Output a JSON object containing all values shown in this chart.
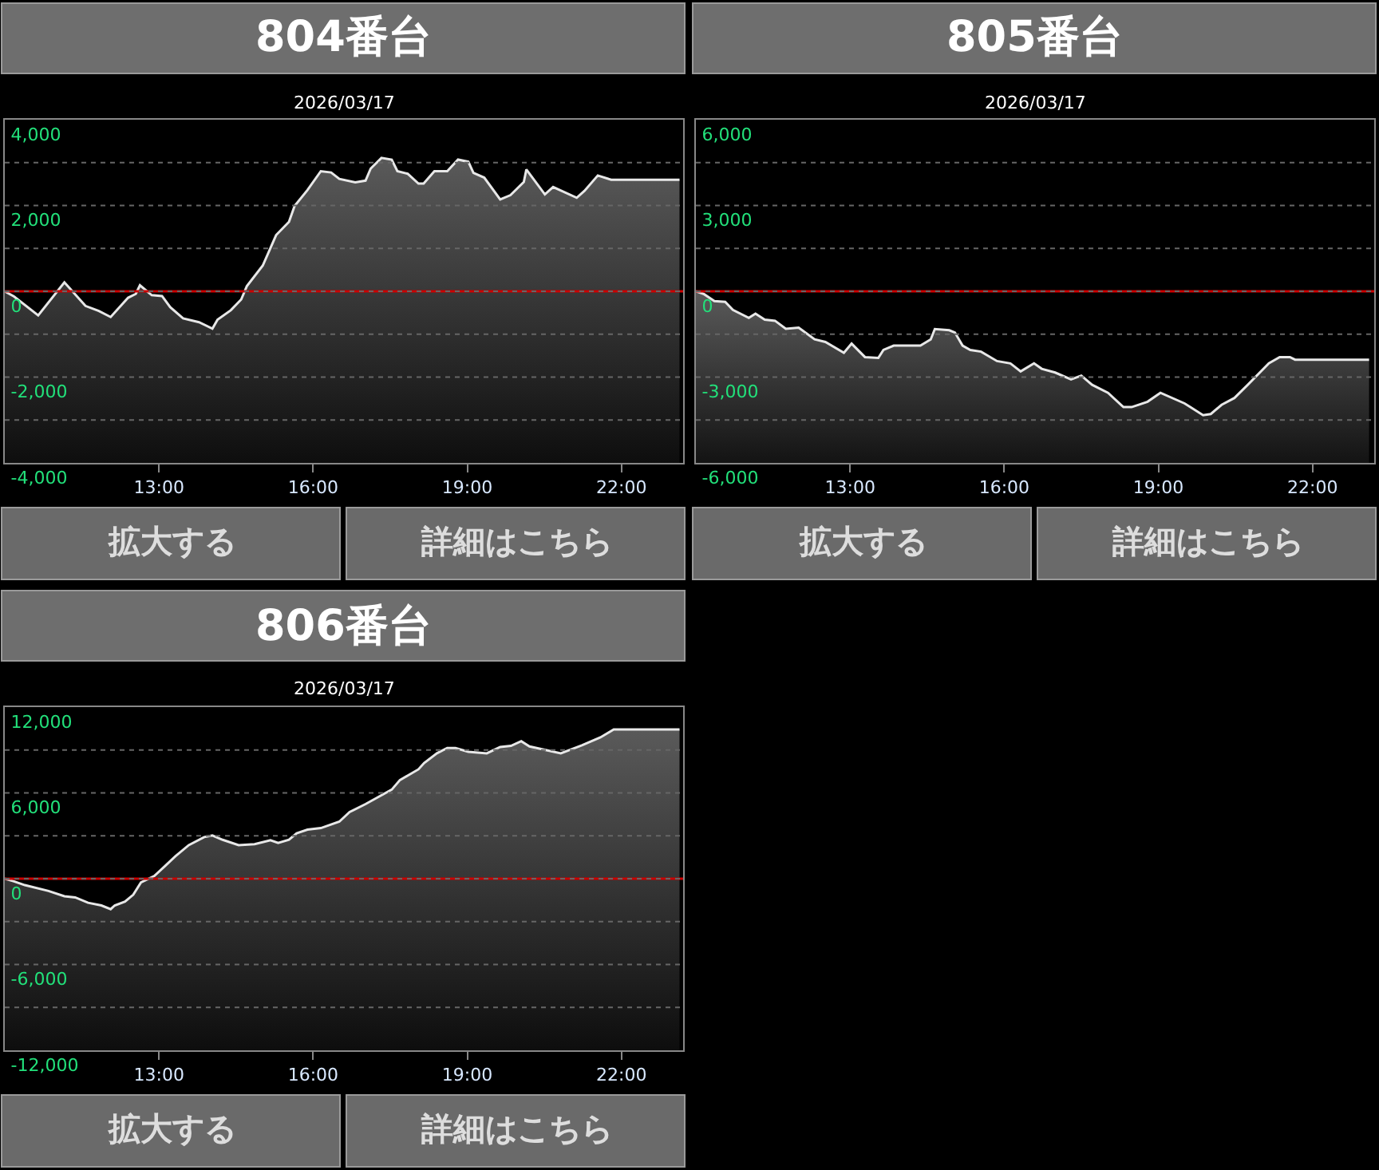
{
  "chart_data": [
    {
      "type": "area",
      "title": "804番台",
      "subtitle": "2026/03/17",
      "annotations": [
        "拡大する",
        "詳細はこちら"
      ],
      "grid": "y",
      "xlim": [
        10,
        23.2
      ],
      "xticks": [
        {
          "value": 13,
          "label": "13:00"
        },
        {
          "value": 16,
          "label": "16:00"
        },
        {
          "value": 19,
          "label": "19:00"
        },
        {
          "value": 22,
          "label": "22:00"
        }
      ],
      "ylim": [
        -4000,
        4000
      ],
      "yticks": [
        {
          "value": -4000,
          "label": "-4,000"
        },
        {
          "value": -3000,
          "label": null
        },
        {
          "value": -2000,
          "label": "-2,000"
        },
        {
          "value": -1000,
          "label": null
        },
        0,
        {
          "value": 1000,
          "label": null
        },
        {
          "value": 2000,
          "label": "2,000"
        },
        {
          "value": 3000,
          "label": null
        },
        {
          "value": 4000,
          "label": "4,000"
        }
      ],
      "ref_lines": [
        {
          "axis": "y",
          "value": 0,
          "color": "#cc0000"
        }
      ],
      "series": [
        {
          "color": "#5a5a5a",
          "x": [
            10.0,
            10.18,
            10.65,
            11.16,
            11.57,
            11.83,
            12.06,
            12.4,
            12.55,
            12.63,
            12.86,
            13.06,
            13.22,
            13.47,
            13.78,
            14.04,
            14.14,
            14.4,
            14.6,
            14.71,
            15.02,
            15.28,
            15.53,
            15.64,
            15.89,
            16.15,
            16.35,
            16.51,
            16.82,
            17.02,
            17.12,
            17.33,
            17.53,
            17.64,
            17.84,
            18.05,
            18.15,
            18.36,
            18.61,
            18.82,
            19.02,
            19.12,
            19.33,
            19.64,
            19.84,
            20.1,
            20.15,
            20.51,
            20.67,
            21.13,
            21.28,
            21.54,
            21.8,
            23.13
          ],
          "values": [
            0,
            -120,
            -560,
            210,
            -340,
            -460,
            -600,
            -150,
            -60,
            140,
            -90,
            -110,
            -370,
            -630,
            -720,
            -870,
            -660,
            -440,
            -190,
            120,
            600,
            1310,
            1620,
            1990,
            2360,
            2800,
            2770,
            2620,
            2540,
            2580,
            2860,
            3110,
            3070,
            2800,
            2740,
            2510,
            2510,
            2800,
            2800,
            3070,
            3020,
            2760,
            2650,
            2140,
            2240,
            2550,
            2840,
            2260,
            2430,
            2180,
            2340,
            2700,
            2600,
            2600
          ]
        }
      ]
    },
    {
      "type": "area",
      "title": "805番台",
      "subtitle": "2026/03/17",
      "annotations": [
        "拡大する",
        "詳細はこちら"
      ],
      "grid": "y",
      "xlim": [
        10,
        23.2
      ],
      "xticks": [
        {
          "value": 13,
          "label": "13:00"
        },
        {
          "value": 16,
          "label": "16:00"
        },
        {
          "value": 19,
          "label": "19:00"
        },
        {
          "value": 22,
          "label": "22:00"
        }
      ],
      "ylim": [
        -6000,
        6000
      ],
      "yticks": [
        {
          "value": -6000,
          "label": "-6,000"
        },
        {
          "value": -4500,
          "label": null
        },
        {
          "value": -3000,
          "label": "-3,000"
        },
        {
          "value": -1500,
          "label": null
        },
        0,
        {
          "value": 1500,
          "label": null
        },
        {
          "value": 3000,
          "label": "3,000"
        },
        {
          "value": 4500,
          "label": null
        },
        {
          "value": 6000,
          "label": "6,000"
        }
      ],
      "ref_lines": [
        {
          "axis": "y",
          "value": 0,
          "color": "#cc0000"
        }
      ],
      "series": [
        {
          "color": "#5a5a5a",
          "x": [
            10.0,
            10.15,
            10.36,
            10.57,
            10.72,
            11.03,
            11.16,
            11.34,
            11.54,
            11.75,
            12.0,
            12.31,
            12.52,
            12.88,
            13.03,
            13.29,
            13.55,
            13.65,
            13.85,
            14.37,
            14.57,
            14.65,
            14.93,
            15.04,
            15.19,
            15.34,
            15.55,
            15.86,
            16.12,
            16.32,
            16.58,
            16.73,
            16.99,
            17.3,
            17.5,
            17.71,
            18.02,
            18.32,
            18.48,
            18.79,
            19.04,
            19.51,
            19.87,
            20.02,
            20.23,
            20.48,
            20.74,
            21.15,
            21.36,
            21.56,
            21.66,
            23.1
          ],
          "values": [
            0,
            -90,
            -340,
            -370,
            -650,
            -930,
            -780,
            -990,
            -1030,
            -1310,
            -1270,
            -1680,
            -1770,
            -2150,
            -1830,
            -2300,
            -2330,
            -2050,
            -1900,
            -1900,
            -1680,
            -1320,
            -1360,
            -1440,
            -1900,
            -2050,
            -2110,
            -2440,
            -2520,
            -2800,
            -2520,
            -2710,
            -2840,
            -3080,
            -2950,
            -3270,
            -3550,
            -4050,
            -4050,
            -3860,
            -3550,
            -3920,
            -4330,
            -4290,
            -3970,
            -3730,
            -3270,
            -2520,
            -2300,
            -2300,
            -2390,
            -2390
          ]
        }
      ]
    },
    {
      "type": "area",
      "title": "806番台",
      "subtitle": "2026/03/17",
      "annotations": [
        "拡大する",
        "詳細はこちら"
      ],
      "grid": "y",
      "xlim": [
        10,
        23.2
      ],
      "xticks": [
        {
          "value": 13,
          "label": "13:00"
        },
        {
          "value": 16,
          "label": "16:00"
        },
        {
          "value": 19,
          "label": "19:00"
        },
        {
          "value": 22,
          "label": "22:00"
        }
      ],
      "ylim": [
        -12000,
        12000
      ],
      "yticks": [
        {
          "value": -12000,
          "label": "-12,000"
        },
        {
          "value": -9000,
          "label": null
        },
        {
          "value": -6000,
          "label": "-6,000"
        },
        {
          "value": -3000,
          "label": null
        },
        0,
        {
          "value": 3000,
          "label": null
        },
        {
          "value": 6000,
          "label": "6,000"
        },
        {
          "value": 9000,
          "label": null
        },
        {
          "value": 12000,
          "label": "12,000"
        }
      ],
      "ref_lines": [
        {
          "axis": "y",
          "value": 0,
          "color": "#cc0000"
        }
      ],
      "series": [
        {
          "color": "#5a5a5a",
          "x": [
            10.0,
            10.18,
            10.39,
            10.85,
            11.16,
            11.37,
            11.62,
            11.88,
            12.06,
            12.14,
            12.34,
            12.5,
            12.65,
            12.91,
            13.11,
            13.32,
            13.58,
            13.88,
            14.04,
            14.24,
            14.55,
            14.86,
            15.17,
            15.32,
            15.53,
            15.68,
            15.89,
            16.15,
            16.51,
            16.71,
            17.02,
            17.53,
            17.69,
            18.05,
            18.16,
            18.41,
            18.61,
            18.77,
            19.02,
            19.38,
            19.64,
            19.85,
            20.05,
            20.21,
            20.82,
            21.23,
            21.59,
            21.85,
            23.13
          ],
          "values": [
            0,
            -190,
            -450,
            -860,
            -1230,
            -1310,
            -1680,
            -1870,
            -2130,
            -1870,
            -1600,
            -1120,
            -260,
            190,
            860,
            1570,
            2350,
            2910,
            3020,
            2720,
            2350,
            2420,
            2690,
            2500,
            2720,
            3170,
            3430,
            3540,
            3990,
            4660,
            5220,
            6230,
            6900,
            7650,
            8090,
            8770,
            9140,
            9140,
            8880,
            8770,
            9210,
            9290,
            9620,
            9250,
            8770,
            9330,
            9880,
            10440,
            10440
          ]
        }
      ]
    }
  ]
}
